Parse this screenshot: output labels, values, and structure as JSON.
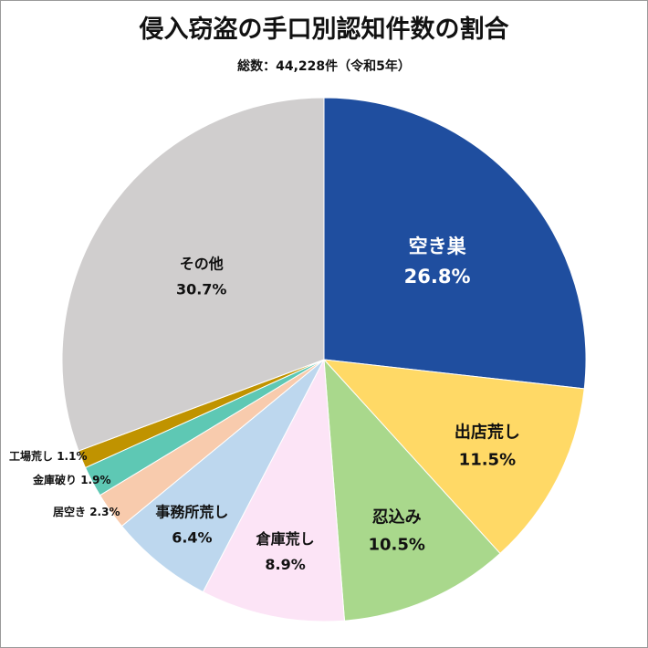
{
  "chart_data": {
    "type": "pie",
    "title": "侵入窃盗の手口別認知件数の割合",
    "subtitle": "総数：44,228件（令和5年）",
    "start": "12 o'clock, clockwise",
    "slices": [
      {
        "label": "空き巣",
        "value": 26.8,
        "value_text": "26.8%",
        "color": "#1f4e9f",
        "text_color": "#ffffff"
      },
      {
        "label": "出店荒し",
        "value": 11.5,
        "value_text": "11.5%",
        "color": "#ffd966",
        "text_color": "#111111"
      },
      {
        "label": "忍込み",
        "value": 10.5,
        "value_text": "10.5%",
        "color": "#a9d88c",
        "text_color": "#111111"
      },
      {
        "label": "倉庫荒し",
        "value": 8.9,
        "value_text": "8.9%",
        "color": "#fce4f6",
        "text_color": "#111111"
      },
      {
        "label": "事務所荒し",
        "value": 6.4,
        "value_text": "6.4%",
        "color": "#bdd7ee",
        "text_color": "#111111"
      },
      {
        "label": "居空き",
        "value": 2.3,
        "value_text": "2.3%",
        "color": "#f8cbad",
        "text_color": "#111111"
      },
      {
        "label": "金庫破り",
        "value": 1.9,
        "value_text": "1.9%",
        "color": "#5ec8b4",
        "text_color": "#111111"
      },
      {
        "label": "工場荒し",
        "value": 1.1,
        "value_text": "1.1%",
        "color": "#c09300",
        "text_color": "#111111"
      },
      {
        "label": "その他",
        "value": 30.7,
        "value_text": "30.7%",
        "color": "#d0cece",
        "text_color": "#111111"
      }
    ]
  }
}
